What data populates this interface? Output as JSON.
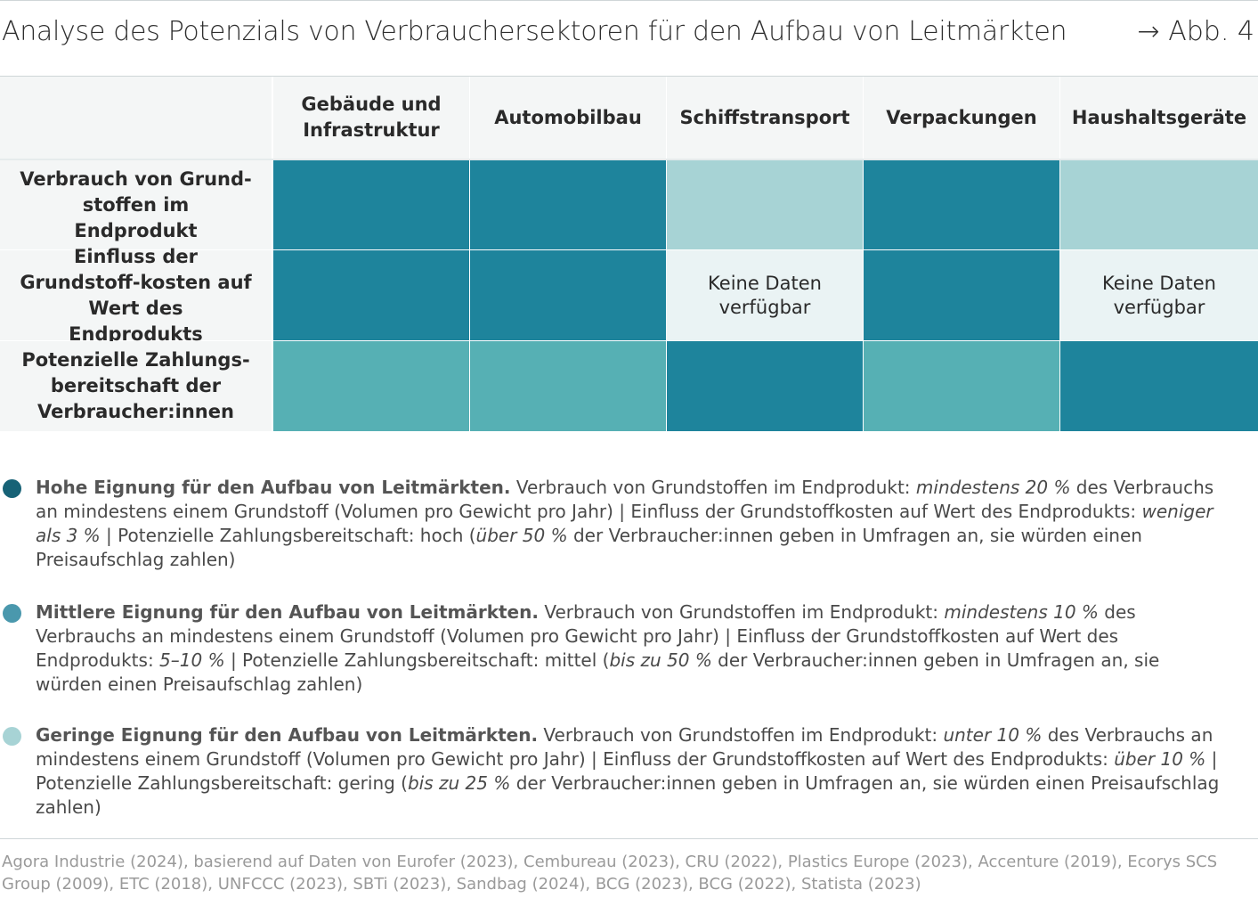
{
  "header": {
    "title": "Analyse des Potenzials von Verbrauchersektoren für den Aufbau von Leitmärkten",
    "figure_ref": "→ Abb. 4"
  },
  "colors": {
    "hoch": "#1e849c",
    "mittel": "#56b0b4",
    "gering": "#a7d3d5",
    "keine_daten": "#eaf3f4",
    "header_bg": "#f4f6f6"
  },
  "chart_data": {
    "type": "table",
    "title": "Analyse des Potenzials von Verbrauchersektoren für den Aufbau von Leitmärkten",
    "columns": [
      "Gebäude und Infrastruktur",
      "Automobilbau",
      "Schiffstransport",
      "Verpackungen",
      "Haushaltsgeräte"
    ],
    "rows": [
      {
        "label": "Verbrauch von Grund-stoffen im Endprodukt",
        "values": [
          "hoch",
          "hoch",
          "gering",
          "hoch",
          "gering"
        ],
        "texts": [
          "",
          "",
          "",
          "",
          ""
        ]
      },
      {
        "label": "Einfluss der Grundstoff-kosten auf Wert des Endprodukts",
        "values": [
          "hoch",
          "hoch",
          "keine_daten",
          "hoch",
          "keine_daten"
        ],
        "texts": [
          "",
          "",
          "Keine Daten verfügbar",
          "",
          "Keine Daten verfügbar"
        ]
      },
      {
        "label": "Potenzielle Zahlungs-bereitschaft der Verbraucher:innen",
        "values": [
          "mittel",
          "mittel",
          "hoch",
          "mittel",
          "hoch"
        ],
        "texts": [
          "",
          "",
          "",
          "",
          ""
        ]
      }
    ]
  },
  "legend": [
    {
      "level": "hoch",
      "bold": "Hohe Eignung für den Aufbau von Leitmärkten.",
      "segments": [
        {
          "text": " Verbrauch von Grundstoffen im Endprodukt: ",
          "italic": false
        },
        {
          "text": "mindestens 20 %",
          "italic": true
        },
        {
          "text": " des Verbrauchs an mindestens einem Grundstoff (Volumen pro Gewicht pro Jahr) | Einfluss der Grundstoffkosten auf Wert des Endprodukts: ",
          "italic": false
        },
        {
          "text": "weniger als 3 %",
          "italic": true
        },
        {
          "text": " | Potenzielle Zahlungsbereitschaft: hoch (",
          "italic": false
        },
        {
          "text": "über 50 %",
          "italic": true
        },
        {
          "text": " der Verbraucher:innen geben in Umfragen an, sie würden einen Preisaufschlag zahlen)",
          "italic": false
        }
      ]
    },
    {
      "level": "mittel",
      "bold": "Mittlere Eignung für den Aufbau von Leitmärkten.",
      "segments": [
        {
          "text": " Verbrauch von Grundstoffen im Endprodukt: ",
          "italic": false
        },
        {
          "text": "mindestens 10 %",
          "italic": true
        },
        {
          "text": " des Verbrauchs an mindestens einem Grundstoff (Volumen pro Gewicht pro Jahr) | Einfluss der Grundstoffkosten auf Wert des Endprodukts: ",
          "italic": false
        },
        {
          "text": "5–10 %",
          "italic": true
        },
        {
          "text": " | Potenzielle Zahlungsbereitschaft: mittel (",
          "italic": false
        },
        {
          "text": "bis zu 50 %",
          "italic": true
        },
        {
          "text": " der Verbraucher:innen geben in Umfragen an, sie würden einen Preisaufschlag zahlen)",
          "italic": false
        }
      ]
    },
    {
      "level": "gering",
      "bold": "Geringe Eignung für den Aufbau von Leitmärkten.",
      "segments": [
        {
          "text": " Verbrauch von Grundstoffen im Endprodukt: ",
          "italic": false
        },
        {
          "text": "unter 10 %",
          "italic": true
        },
        {
          "text": " des Verbrauchs an mindestens einem Grundstoff (Volumen pro Gewicht pro Jahr) | Einfluss der Grundstoffkosten auf Wert des Endprodukts: ",
          "italic": false
        },
        {
          "text": "über 10 %",
          "italic": true
        },
        {
          "text": " | Potenzielle Zahlungsbereitschaft: gering (",
          "italic": false
        },
        {
          "text": "bis zu 25 %",
          "italic": true
        },
        {
          "text": " der Verbraucher:innen geben in Umfragen an, sie würden einen Preisaufschlag zahlen)",
          "italic": false
        }
      ]
    }
  ],
  "source": "Agora Industrie (2024), basierend auf Daten von Eurofer (2023), Cembureau (2023), CRU (2022), Plastics Europe (2023), Accenture (2019), Ecorys SCS Group (2009), ETC (2018), UNFCCC (2023), SBTi (2023), Sandbag (2024), BCG (2023), BCG (2022), Statista (2023)"
}
